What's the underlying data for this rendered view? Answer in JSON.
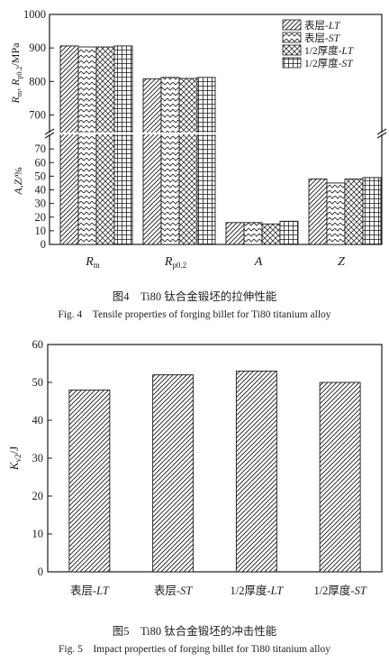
{
  "colors": {
    "ink": "#1a1a1a",
    "background": "#ffffff"
  },
  "chart_data": [
    {
      "type": "bar",
      "ylabel": "R_m, R_p0.2/MPa  ·  A,Z/%",
      "categories": [
        "Rm",
        "Rp0.2",
        "A",
        "Z"
      ],
      "category_labels": [
        {
          "main": "R",
          "sub": "m"
        },
        {
          "main": "R",
          "sub": "p0.2"
        },
        {
          "main": "A",
          "sub": ""
        },
        {
          "main": "Z",
          "sub": ""
        }
      ],
      "series": [
        {
          "name": "表层-LT",
          "values": [
            906,
            808,
            16,
            48
          ]
        },
        {
          "name": "表层-ST",
          "values": [
            903,
            812,
            16,
            45
          ]
        },
        {
          "name": "1/2厚度-LT",
          "values": [
            903,
            809,
            15,
            48
          ]
        },
        {
          "name": "1/2厚度-ST",
          "values": [
            906,
            812,
            17,
            49
          ]
        }
      ],
      "legend": {
        "position": "top-right",
        "entries": [
          {
            "prefix": "表层-",
            "suffix": "LT"
          },
          {
            "prefix": "表层-",
            "suffix": "ST"
          },
          {
            "prefix": "1/2厚度-",
            "suffix": "LT"
          },
          {
            "prefix": "1/2厚度-",
            "suffix": "ST"
          }
        ]
      },
      "axis_break": true,
      "upper_axis": {
        "ylim": [
          650,
          1000
        ],
        "ticks": [
          "700",
          "800",
          "900",
          "1000"
        ]
      },
      "lower_axis": {
        "ylim": [
          0,
          80
        ],
        "ticks": [
          "0",
          "10",
          "20",
          "30",
          "40",
          "50",
          "60",
          "70"
        ]
      },
      "grid": false
    },
    {
      "type": "bar",
      "ylabel": "K_v2/J",
      "categories": [
        "表层-LT",
        "表层-ST",
        "1/2厚度-LT",
        "1/2厚度-ST"
      ],
      "category_labels": [
        {
          "prefix": "表层-",
          "suffix": "LT"
        },
        {
          "prefix": "表层-",
          "suffix": "ST"
        },
        {
          "prefix": "1/2厚度-",
          "suffix": "LT"
        },
        {
          "prefix": "1/2厚度-",
          "suffix": "ST"
        }
      ],
      "values": [
        48,
        52,
        53,
        50
      ],
      "ylim": [
        0,
        60
      ],
      "ticks": [
        "0",
        "10",
        "20",
        "30",
        "40",
        "50",
        "60"
      ],
      "grid": false
    }
  ],
  "captions": {
    "fig4_zh": "图4　Ti80 钛合金锻坯的拉伸性能",
    "fig4_en": "Fig. 4　Tensile properties of forging billet for Ti80 titanium alloy",
    "fig5_zh": "图5　Ti80 钛合金锻坯的冲击性能",
    "fig5_en": "Fig. 5　Impact properties of forging billet for Ti80 titanium alloy"
  }
}
